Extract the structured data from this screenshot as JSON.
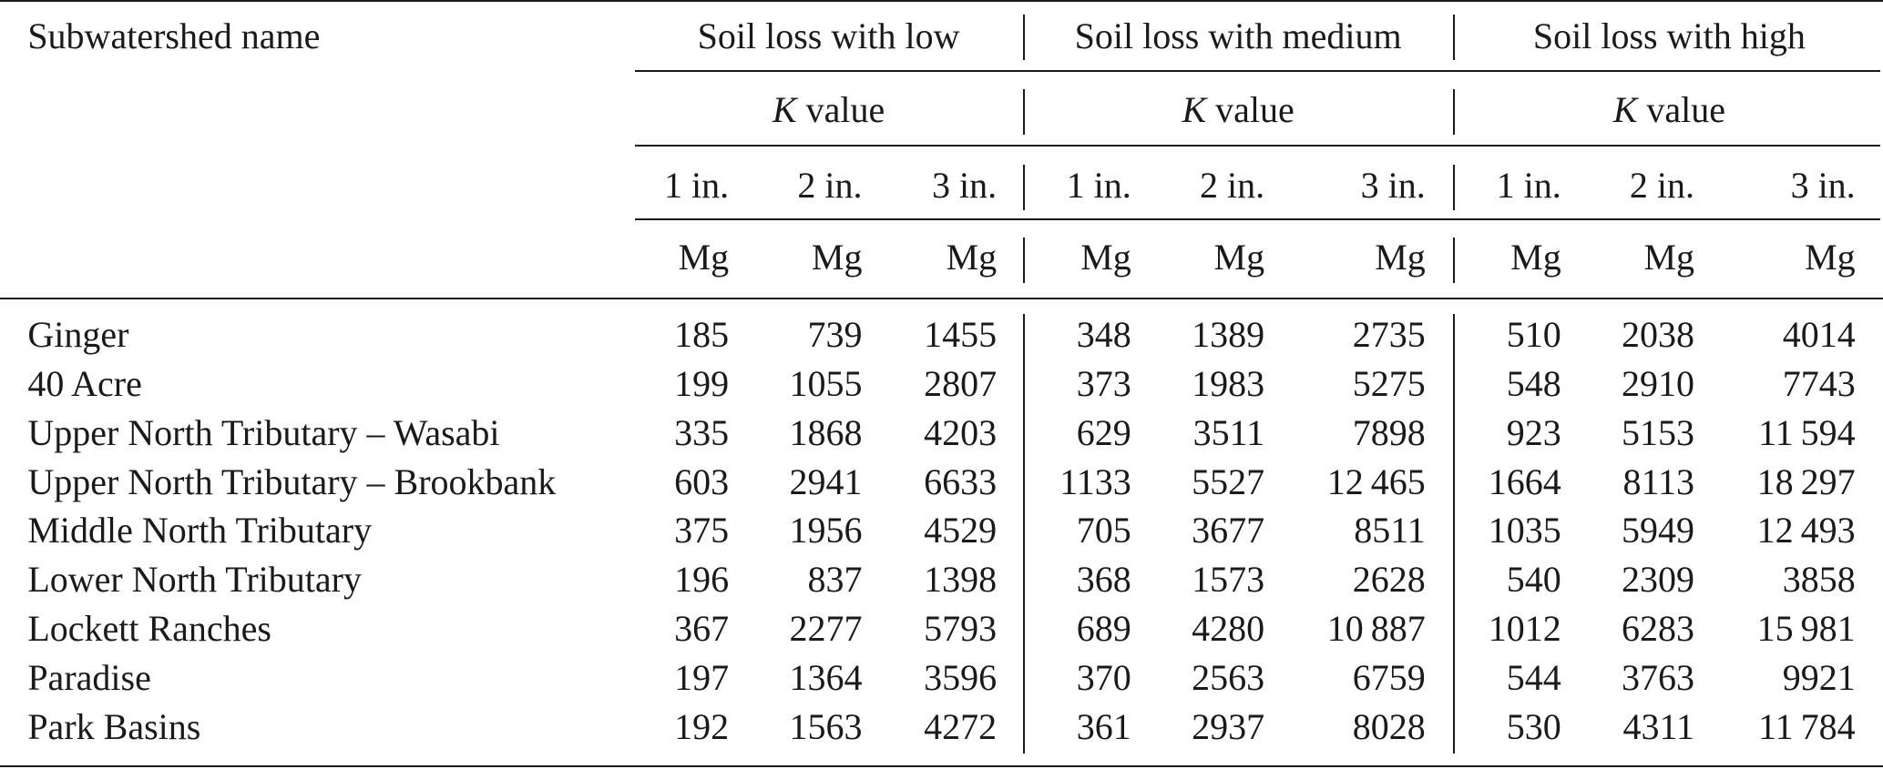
{
  "table": {
    "header": {
      "name": "Subwatershed name",
      "groups": [
        {
          "line1": "Soil loss with low",
          "k": "K",
          "value": "value"
        },
        {
          "line1": "Soil loss with medium",
          "k": "K",
          "value": "value"
        },
        {
          "line1": "Soil loss with high",
          "k": "K",
          "value": "value"
        }
      ],
      "depths": [
        "1 in.",
        "2 in.",
        "3 in.",
        "1 in.",
        "2 in.",
        "3 in.",
        "1 in.",
        "2 in.",
        "3 in."
      ],
      "units": [
        "Mg",
        "Mg",
        "Mg",
        "Mg",
        "Mg",
        "Mg",
        "Mg",
        "Mg",
        "Mg"
      ]
    },
    "rows": [
      [
        "Ginger",
        "185",
        "739",
        "1455",
        "348",
        "1389",
        "2735",
        "510",
        "2038",
        "4014"
      ],
      [
        "40 Acre",
        "199",
        "1055",
        "2807",
        "373",
        "1983",
        "5275",
        "548",
        "2910",
        "7743"
      ],
      [
        "Upper North Tributary – Wasabi",
        "335",
        "1868",
        "4203",
        "629",
        "3511",
        "7898",
        "923",
        "5153",
        "11 594"
      ],
      [
        "Upper North Tributary – Brookbank",
        "603",
        "2941",
        "6633",
        "1133",
        "5527",
        "12 465",
        "1664",
        "8113",
        "18 297"
      ],
      [
        "Middle North Tributary",
        "375",
        "1956",
        "4529",
        "705",
        "3677",
        "8511",
        "1035",
        "5949",
        "12 493"
      ],
      [
        "Lower North Tributary",
        "196",
        "837",
        "1398",
        "368",
        "1573",
        "2628",
        "540",
        "2309",
        "3858"
      ],
      [
        "Lockett Ranches",
        "367",
        "2277",
        "5793",
        "689",
        "4280",
        "10 887",
        "1012",
        "6283",
        "15 981"
      ],
      [
        "Paradise",
        "197",
        "1364",
        "3596",
        "370",
        "2563",
        "6759",
        "544",
        "3763",
        "9921"
      ],
      [
        "Park Basins",
        "192",
        "1563",
        "4272",
        "361",
        "2937",
        "8028",
        "530",
        "4311",
        "11 784"
      ]
    ]
  }
}
